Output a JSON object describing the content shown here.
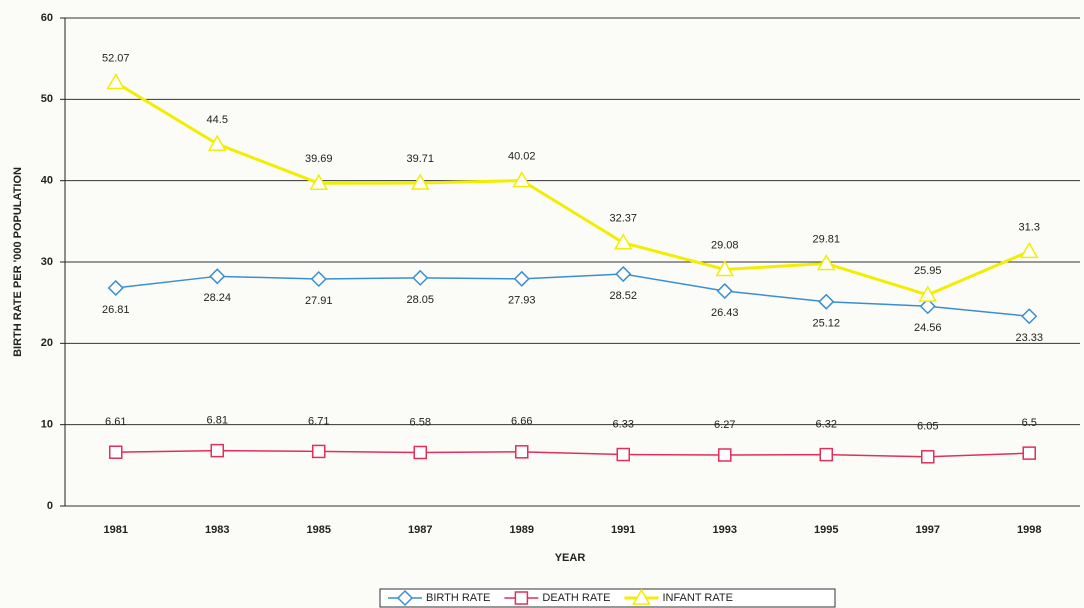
{
  "chart_data": {
    "type": "line",
    "categories": [
      "1981",
      "1983",
      "1985",
      "1987",
      "1989",
      "1991",
      "1993",
      "1995",
      "1997",
      "1998"
    ],
    "series": [
      {
        "name": "BIRTH RATE",
        "color": "#3a8fd0",
        "marker": "diamond",
        "values": [
          26.81,
          28.24,
          27.91,
          28.05,
          27.93,
          28.52,
          26.43,
          25.12,
          24.56,
          23.33
        ]
      },
      {
        "name": "DEATH RATE",
        "color": "#e0305a",
        "marker": "square",
        "values": [
          6.61,
          6.81,
          6.71,
          6.58,
          6.66,
          6.33,
          6.27,
          6.32,
          6.05,
          6.5
        ]
      },
      {
        "name": "INFANT RATE",
        "color": "#f2ee00",
        "marker": "triangle",
        "values": [
          52.07,
          44.5,
          39.69,
          39.71,
          40.02,
          32.37,
          29.08,
          29.81,
          25.95,
          31.3
        ]
      }
    ],
    "x_label": "YEAR",
    "y_label": "BIRTH RATE PER '000 POPULATION",
    "ylim": [
      0,
      60
    ],
    "yticks": [
      0,
      10,
      20,
      30,
      40,
      50,
      60
    ],
    "grid": true,
    "legend": "bottom"
  }
}
